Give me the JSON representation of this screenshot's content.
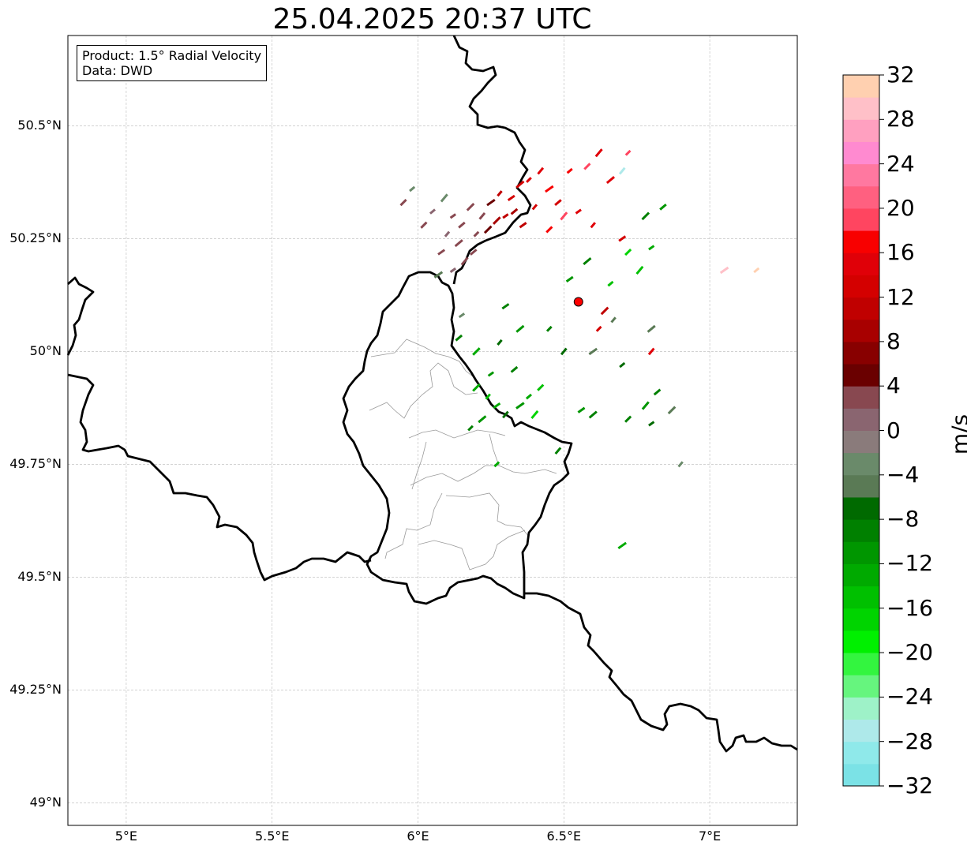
{
  "title": "25.04.2025 20:37 UTC",
  "info": {
    "product": "Product: 1.5° Radial Velocity",
    "source": "Data: DWD"
  },
  "map": {
    "extent": {
      "lon_min": 4.8,
      "lon_max": 7.3,
      "lat_min": 48.95,
      "lat_max": 50.7
    },
    "radar_site": {
      "lon": 6.55,
      "lat": 50.11,
      "color": "#ff0000"
    },
    "border_color": "#000000",
    "admin_color": "#999999",
    "grid_color": "#b8b8b8"
  },
  "axes": {
    "lat_ticks": [
      {
        "value": 50.5,
        "label": "50.5°N"
      },
      {
        "value": 50.25,
        "label": "50.25°N"
      },
      {
        "value": 50.0,
        "label": "50°N"
      },
      {
        "value": 49.75,
        "label": "49.75°N"
      },
      {
        "value": 49.5,
        "label": "49.5°N"
      },
      {
        "value": 49.25,
        "label": "49.25°N"
      },
      {
        "value": 49.0,
        "label": "49°N"
      }
    ],
    "lon_ticks": [
      {
        "value": 5.0,
        "label": "5°E"
      },
      {
        "value": 5.5,
        "label": "5.5°E"
      },
      {
        "value": 6.0,
        "label": "6°E"
      },
      {
        "value": 6.5,
        "label": "6.5°E"
      },
      {
        "value": 7.0,
        "label": "7°E"
      }
    ]
  },
  "colorbar": {
    "unit": "m/s",
    "min": -32,
    "max": 32,
    "step": 2,
    "tick_labels": [
      "32",
      "28",
      "24",
      "20",
      "16",
      "12",
      "8",
      "4",
      "0",
      "−4",
      "−8",
      "−12",
      "−16",
      "−20",
      "−24",
      "−28",
      "−32"
    ],
    "colors_bottom_to_top": [
      "#7be2e6",
      "#8fe9ea",
      "#aee9ea",
      "#9ef2c8",
      "#66f57e",
      "#33f53f",
      "#00f000",
      "#00d400",
      "#00c000",
      "#00aa00",
      "#009600",
      "#008000",
      "#006a00",
      "#5a7a55",
      "#6a8a6a",
      "#8a7b7b",
      "#8a6570",
      "#884850",
      "#6a0000",
      "#880000",
      "#a80000",
      "#c00000",
      "#d40000",
      "#e00008",
      "#f80000",
      "#ff4560",
      "#ff6080",
      "#ff78a0",
      "#ff8ad0",
      "#ffa0c0",
      "#ffc0c8",
      "#ffd0b0"
    ]
  },
  "velocity_cells": [
    {
      "lon": 6.12,
      "lat": 50.3,
      "v": 2
    },
    {
      "lon": 6.15,
      "lat": 50.28,
      "v": 2
    },
    {
      "lon": 6.18,
      "lat": 50.32,
      "v": 3
    },
    {
      "lon": 6.1,
      "lat": 50.26,
      "v": 1
    },
    {
      "lon": 6.08,
      "lat": 50.22,
      "v": 2
    },
    {
      "lon": 6.14,
      "lat": 50.24,
      "v": 2
    },
    {
      "lon": 6.2,
      "lat": 50.26,
      "v": 3
    },
    {
      "lon": 6.22,
      "lat": 50.3,
      "v": 3
    },
    {
      "lon": 6.25,
      "lat": 50.33,
      "v": 4
    },
    {
      "lon": 6.05,
      "lat": 50.31,
      "v": 1
    },
    {
      "lon": 6.02,
      "lat": 50.28,
      "v": 2
    },
    {
      "lon": 6.16,
      "lat": 50.2,
      "v": 2
    },
    {
      "lon": 6.12,
      "lat": 50.18,
      "v": 1
    },
    {
      "lon": 6.19,
      "lat": 50.22,
      "v": 3
    },
    {
      "lon": 6.24,
      "lat": 50.27,
      "v": 4
    },
    {
      "lon": 6.28,
      "lat": 50.35,
      "v": 10
    },
    {
      "lon": 6.32,
      "lat": 50.34,
      "v": 12
    },
    {
      "lon": 6.35,
      "lat": 50.37,
      "v": 13
    },
    {
      "lon": 6.38,
      "lat": 50.38,
      "v": 15
    },
    {
      "lon": 6.42,
      "lat": 50.4,
      "v": 14
    },
    {
      "lon": 6.45,
      "lat": 50.36,
      "v": 16
    },
    {
      "lon": 6.52,
      "lat": 50.4,
      "v": 17
    },
    {
      "lon": 6.58,
      "lat": 50.41,
      "v": 18
    },
    {
      "lon": 6.62,
      "lat": 50.44,
      "v": 14
    },
    {
      "lon": 6.3,
      "lat": 50.3,
      "v": 11
    },
    {
      "lon": 6.33,
      "lat": 50.31,
      "v": 9
    },
    {
      "lon": 6.27,
      "lat": 50.29,
      "v": 8
    },
    {
      "lon": 6.4,
      "lat": 50.32,
      "v": 12
    },
    {
      "lon": 6.36,
      "lat": 50.28,
      "v": 10
    },
    {
      "lon": 6.66,
      "lat": 50.38,
      "v": 15
    },
    {
      "lon": 6.72,
      "lat": 50.44,
      "v": 18
    },
    {
      "lon": 6.7,
      "lat": 50.4,
      "v": -28
    },
    {
      "lon": 6.07,
      "lat": 50.17,
      "v": -6
    },
    {
      "lon": 5.98,
      "lat": 50.36,
      "v": -4
    },
    {
      "lon": 5.95,
      "lat": 50.33,
      "v": 2
    },
    {
      "lon": 6.09,
      "lat": 50.34,
      "v": -3
    },
    {
      "lon": 6.15,
      "lat": 50.08,
      "v": -4
    },
    {
      "lon": 6.14,
      "lat": 50.03,
      "v": -10
    },
    {
      "lon": 6.2,
      "lat": 49.92,
      "v": -14
    },
    {
      "lon": 6.24,
      "lat": 49.9,
      "v": -16
    },
    {
      "lon": 6.27,
      "lat": 49.88,
      "v": -14
    },
    {
      "lon": 6.22,
      "lat": 49.85,
      "v": -12
    },
    {
      "lon": 6.18,
      "lat": 49.83,
      "v": -10
    },
    {
      "lon": 6.3,
      "lat": 49.86,
      "v": -8
    },
    {
      "lon": 6.35,
      "lat": 49.88,
      "v": -12
    },
    {
      "lon": 6.38,
      "lat": 49.9,
      "v": -14
    },
    {
      "lon": 6.42,
      "lat": 49.92,
      "v": -16
    },
    {
      "lon": 6.4,
      "lat": 49.86,
      "v": -18
    },
    {
      "lon": 6.25,
      "lat": 49.95,
      "v": -12
    },
    {
      "lon": 6.33,
      "lat": 49.96,
      "v": -10
    },
    {
      "lon": 6.2,
      "lat": 50.0,
      "v": -14
    },
    {
      "lon": 6.28,
      "lat": 50.02,
      "v": -8
    },
    {
      "lon": 6.3,
      "lat": 50.1,
      "v": -10
    },
    {
      "lon": 6.35,
      "lat": 50.05,
      "v": -12
    },
    {
      "lon": 6.45,
      "lat": 50.05,
      "v": -10
    },
    {
      "lon": 6.5,
      "lat": 50.0,
      "v": -8
    },
    {
      "lon": 6.6,
      "lat": 50.0,
      "v": -6
    },
    {
      "lon": 6.7,
      "lat": 49.97,
      "v": -8
    },
    {
      "lon": 6.72,
      "lat": 49.85,
      "v": -10
    },
    {
      "lon": 6.78,
      "lat": 49.88,
      "v": -12
    },
    {
      "lon": 6.8,
      "lat": 49.84,
      "v": -8
    },
    {
      "lon": 6.82,
      "lat": 49.91,
      "v": -10
    },
    {
      "lon": 6.87,
      "lat": 49.87,
      "v": -6
    },
    {
      "lon": 6.9,
      "lat": 49.75,
      "v": -4
    },
    {
      "lon": 6.56,
      "lat": 49.87,
      "v": -12
    },
    {
      "lon": 6.6,
      "lat": 49.86,
      "v": -10
    },
    {
      "lon": 6.27,
      "lat": 49.75,
      "v": -14
    },
    {
      "lon": 6.48,
      "lat": 49.78,
      "v": -10
    },
    {
      "lon": 6.7,
      "lat": 49.57,
      "v": -14
    },
    {
      "lon": 6.66,
      "lat": 50.15,
      "v": -16
    },
    {
      "lon": 6.72,
      "lat": 50.22,
      "v": -18
    },
    {
      "lon": 6.76,
      "lat": 50.18,
      "v": -16
    },
    {
      "lon": 6.8,
      "lat": 50.23,
      "v": -14
    },
    {
      "lon": 6.84,
      "lat": 50.32,
      "v": -12
    },
    {
      "lon": 6.78,
      "lat": 50.3,
      "v": -10
    },
    {
      "lon": 6.6,
      "lat": 50.28,
      "v": 14
    },
    {
      "lon": 6.7,
      "lat": 50.25,
      "v": 13
    },
    {
      "lon": 6.8,
      "lat": 50.05,
      "v": -6
    },
    {
      "lon": 6.62,
      "lat": 50.05,
      "v": 12
    },
    {
      "lon": 6.8,
      "lat": 50.0,
      "v": 14
    },
    {
      "lon": 7.05,
      "lat": 50.18,
      "v": 28
    },
    {
      "lon": 7.16,
      "lat": 50.18,
      "v": 30
    },
    {
      "lon": 6.45,
      "lat": 50.27,
      "v": 16
    },
    {
      "lon": 6.5,
      "lat": 50.3,
      "v": 18
    },
    {
      "lon": 6.55,
      "lat": 50.31,
      "v": 15
    },
    {
      "lon": 6.48,
      "lat": 50.33,
      "v": 12
    },
    {
      "lon": 6.64,
      "lat": 50.09,
      "v": 10
    },
    {
      "lon": 6.67,
      "lat": 50.07,
      "v": -6
    },
    {
      "lon": 6.52,
      "lat": 50.16,
      "v": -12
    },
    {
      "lon": 6.58,
      "lat": 50.2,
      "v": -10
    }
  ]
}
